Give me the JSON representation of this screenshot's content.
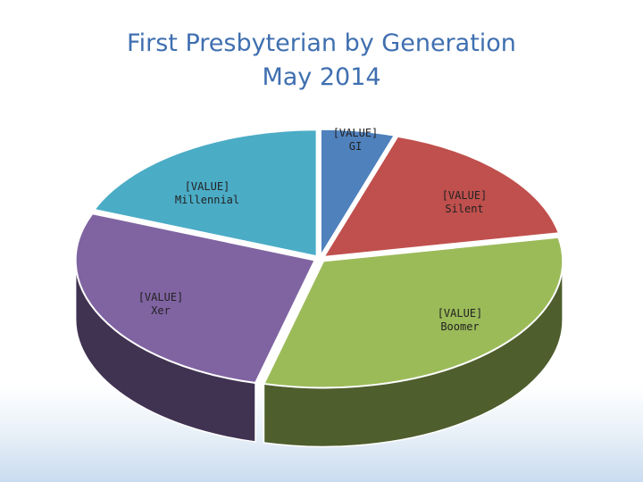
{
  "chart_data": {
    "type": "pie",
    "title_line1": "First Presbyterian by Generation",
    "title_line2": "May 2014",
    "slices": [
      {
        "category": "GI",
        "value_text": "[VALUE]",
        "value": 5,
        "color": "#4f81bd"
      },
      {
        "category": "Silent",
        "value_text": "[VALUE]",
        "value": 17,
        "color": "#c0504d"
      },
      {
        "category": "Boomer",
        "value_text": "[VALUE]",
        "value": 32,
        "color": "#9bbb59"
      },
      {
        "category": "Xer",
        "value_text": "[VALUE]",
        "value": 27,
        "color": "#8064a2"
      },
      {
        "category": "Millennial",
        "value_text": "[VALUE]",
        "value": 19,
        "color": "#4bacc6"
      }
    ],
    "legend": "none",
    "style": "3d-exploded"
  }
}
